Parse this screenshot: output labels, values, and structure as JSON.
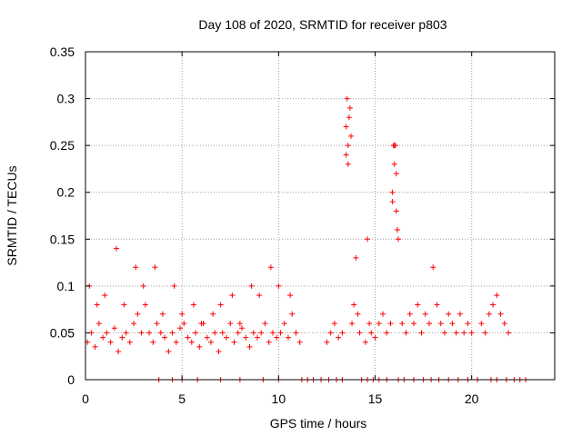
{
  "chart_data": {
    "type": "scatter",
    "title": "Day 108 of 2020, SRMTID for receiver p803",
    "xlabel": "GPS time / hours",
    "ylabel": "SRMTID / TECUs",
    "xlim": [
      0,
      24.3
    ],
    "ylim": [
      0,
      0.35
    ],
    "xticks": [
      0,
      5,
      10,
      15,
      20
    ],
    "xtick_labels": [
      "0",
      "5",
      "10",
      "15",
      "20"
    ],
    "yticks": [
      0,
      0.05,
      0.1,
      0.15,
      0.2,
      0.25,
      0.3,
      0.35
    ],
    "ytick_labels": [
      "0",
      "0.05",
      "0.1",
      "0.15",
      "0.2",
      "0.25",
      "0.3",
      "0.35"
    ],
    "grid": true,
    "marker": "+",
    "color": "#ff0000",
    "series": [
      {
        "name": "SRMTID",
        "x": [
          0.1,
          0.3,
          0.5,
          0.7,
          0.9,
          1.1,
          1.3,
          1.5,
          1.7,
          1.9,
          2.1,
          2.3,
          2.5,
          2.7,
          2.9,
          3.1,
          3.3,
          3.5,
          3.7,
          3.9,
          4.1,
          4.3,
          4.5,
          4.7,
          4.9,
          5.1,
          5.3,
          5.5,
          5.7,
          5.9,
          6.1,
          6.3,
          6.5,
          6.7,
          6.9,
          7.1,
          7.3,
          7.5,
          7.7,
          7.9,
          8.1,
          8.3,
          8.5,
          8.7,
          8.9,
          9.1,
          9.3,
          9.5,
          9.7,
          9.9,
          10.1,
          10.3,
          10.5,
          10.7,
          10.9,
          11.1,
          12.5,
          12.7,
          12.9,
          13.1,
          13.3,
          13.5,
          13.6,
          13.7,
          13.8,
          13.9,
          14.0,
          14.1,
          14.2,
          14.5,
          14.6,
          14.7,
          14.8,
          15.0,
          15.2,
          15.4,
          15.6,
          15.8,
          15.9,
          16.0,
          16.1,
          16.2,
          16.4,
          16.6,
          16.8,
          17.0,
          17.2,
          17.4,
          17.6,
          17.8,
          18.0,
          18.2,
          18.4,
          18.6,
          18.8,
          19.0,
          19.2,
          19.4,
          19.6,
          19.8,
          20.0,
          20.5,
          20.7,
          20.9,
          21.1,
          21.3,
          21.5,
          21.7,
          21.9,
          0.2,
          0.6,
          1.0,
          1.6,
          2.0,
          2.6,
          3.0,
          3.6,
          4.0,
          4.6,
          5.0,
          5.6,
          6.0,
          6.6,
          7.0,
          7.6,
          8.0,
          8.6,
          9.0,
          9.6,
          10.0,
          10.6,
          13.55,
          13.65,
          13.75,
          13.5,
          13.6,
          15.95,
          16.05,
          16.0,
          16.1,
          15.9,
          16.15
        ],
        "y": [
          0.04,
          0.05,
          0.035,
          0.06,
          0.045,
          0.05,
          0.04,
          0.055,
          0.03,
          0.045,
          0.05,
          0.04,
          0.06,
          0.07,
          0.05,
          0.08,
          0.05,
          0.04,
          0.06,
          0.05,
          0.045,
          0.03,
          0.05,
          0.04,
          0.055,
          0.06,
          0.045,
          0.04,
          0.05,
          0.035,
          0.06,
          0.045,
          0.04,
          0.05,
          0.03,
          0.05,
          0.045,
          0.06,
          0.04,
          0.05,
          0.055,
          0.045,
          0.035,
          0.05,
          0.045,
          0.05,
          0.06,
          0.04,
          0.05,
          0.045,
          0.05,
          0.06,
          0.045,
          0.07,
          0.05,
          0.04,
          0.04,
          0.05,
          0.06,
          0.045,
          0.05,
          0.27,
          0.25,
          0.29,
          0.06,
          0.08,
          0.13,
          0.07,
          0.05,
          0.04,
          0.15,
          0.06,
          0.05,
          0.045,
          0.06,
          0.07,
          0.05,
          0.06,
          0.2,
          0.25,
          0.18,
          0.15,
          0.06,
          0.05,
          0.07,
          0.06,
          0.08,
          0.05,
          0.07,
          0.06,
          0.12,
          0.08,
          0.06,
          0.05,
          0.07,
          0.06,
          0.05,
          0.07,
          0.05,
          0.06,
          0.05,
          0.06,
          0.05,
          0.07,
          0.08,
          0.09,
          0.07,
          0.06,
          0.05,
          0.1,
          0.08,
          0.09,
          0.14,
          0.08,
          0.12,
          0.1,
          0.12,
          0.07,
          0.1,
          0.07,
          0.08,
          0.06,
          0.07,
          0.08,
          0.09,
          0.06,
          0.1,
          0.09,
          0.12,
          0.1,
          0.09,
          0.3,
          0.28,
          0.26,
          0.24,
          0.23,
          0.25,
          0.25,
          0.23,
          0.22,
          0.19,
          0.16
        ],
        "zeros_x": [
          3.8,
          4.5,
          5.0,
          5.8,
          7.0,
          8.0,
          9.2,
          10.0,
          11.2,
          11.5,
          11.8,
          12.2,
          12.6,
          13.0,
          13.3,
          14.3,
          14.6,
          14.9,
          15.2,
          15.6,
          16.2,
          16.5,
          17.0,
          17.5,
          17.9,
          18.3,
          18.8,
          19.3,
          19.8,
          20.3,
          21.0,
          21.3,
          21.8,
          22.2,
          22.5,
          22.8
        ]
      }
    ]
  }
}
